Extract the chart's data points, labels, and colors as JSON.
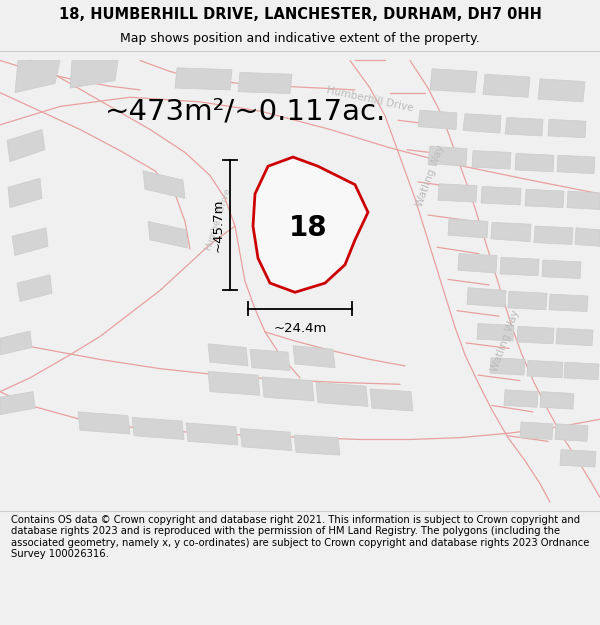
{
  "title_line1": "18, HUMBERHILL DRIVE, LANCHESTER, DURHAM, DH7 0HH",
  "title_line2": "Map shows position and indicative extent of the property.",
  "area_text": "~473m²/~0.117ac.",
  "label_number": "18",
  "dim_width": "~24.4m",
  "dim_height": "~45.7m",
  "footer_text": "Contains OS data © Crown copyright and database right 2021. This information is subject to Crown copyright and database rights 2023 and is reproduced with the permission of HM Land Registry. The polygons (including the associated geometry, namely x, y co-ordinates) are subject to Crown copyright and database rights 2023 Ordnance Survey 100026316.",
  "bg_color": "#f0f0f0",
  "map_bg": "#ffffff",
  "road_color": "#e8a0a0",
  "block_color": "#d4d4d4",
  "block_edge": "#cccccc",
  "highlight_fill": "#f5f5f5",
  "highlight_outline": "#cc0000",
  "dim_color": "#000000",
  "road_label_color": "#bbbbbb",
  "title_fontsize": 10.5,
  "subtitle_fontsize": 9,
  "area_fontsize": 21,
  "number_fontsize": 20,
  "dim_fontsize": 9.5,
  "footer_fontsize": 7.2,
  "road_label_fontsize": 7.5
}
